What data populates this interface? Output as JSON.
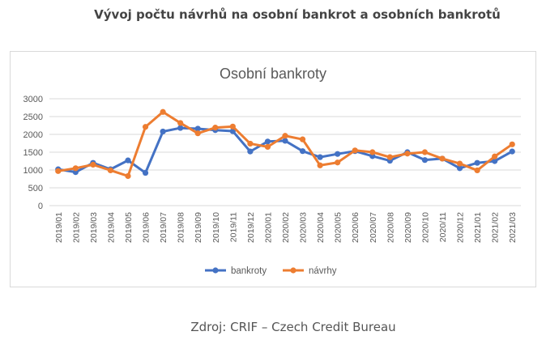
{
  "page": {
    "heading": "Vývoj počtu návrhů na osobní bankrot a osobních bankrotů",
    "source": "Zdroj: CRIF – Czech Credit Bureau"
  },
  "chart_data": {
    "type": "line",
    "title": "Osobní bankroty",
    "xlabel": "",
    "ylabel": "",
    "ylim": [
      0,
      3000
    ],
    "yticks": [
      "0",
      "500",
      "1000",
      "1500",
      "2000",
      "2500",
      "3000"
    ],
    "grid": true,
    "legend": "bottom",
    "categories": [
      "2019/01",
      "2019/02",
      "2019/03",
      "2019/04",
      "2019/05",
      "2019/06",
      "2019/07",
      "2019/08",
      "2019/09",
      "2019/10",
      "2019/11",
      "2019/12",
      "2020/01",
      "2020/02",
      "2020/03",
      "2020/04",
      "2020/05",
      "2020/06",
      "2020/07",
      "2020/08",
      "2020/09",
      "2020/10",
      "2020/11",
      "2020/12",
      "2021/01",
      "2021/02",
      "2021/03"
    ],
    "series": [
      {
        "name": "bankroty",
        "color": "#4472c4",
        "values": [
          1020,
          940,
          1200,
          1020,
          1270,
          920,
          2080,
          2180,
          2160,
          2120,
          2090,
          1520,
          1800,
          1820,
          1530,
          1360,
          1450,
          1530,
          1390,
          1260,
          1500,
          1280,
          1320,
          1050,
          1200,
          1250,
          1520
        ]
      },
      {
        "name": "návrhy",
        "color": "#ed7d31",
        "values": [
          970,
          1050,
          1150,
          990,
          830,
          2210,
          2630,
          2320,
          2030,
          2190,
          2220,
          1740,
          1650,
          1960,
          1860,
          1130,
          1210,
          1550,
          1500,
          1360,
          1460,
          1500,
          1320,
          1180,
          990,
          1380,
          1720
        ]
      }
    ]
  }
}
